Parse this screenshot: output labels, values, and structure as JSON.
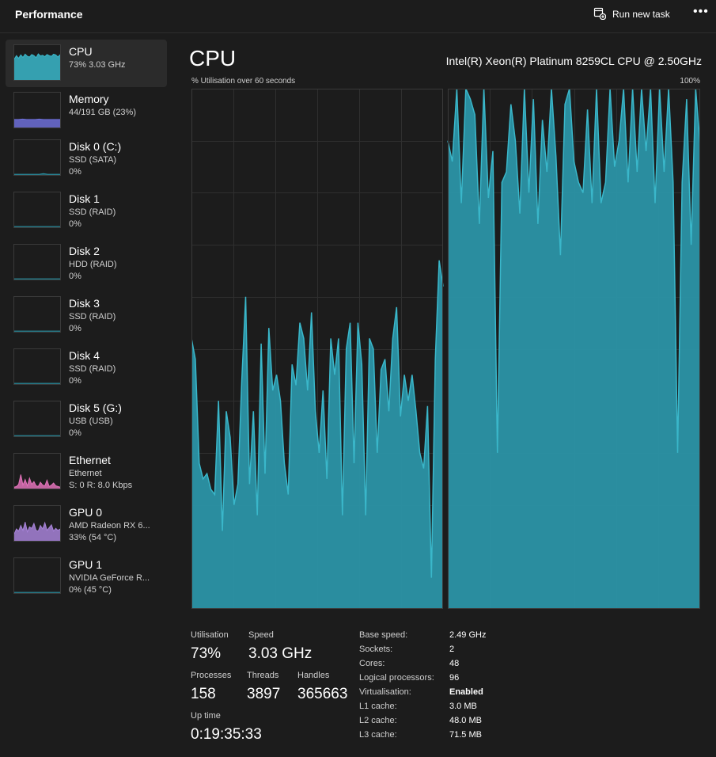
{
  "window": {
    "title": "Performance"
  },
  "toolbar": {
    "run_new_task_label": "Run new task",
    "more_label": "•••"
  },
  "colors": {
    "cpu": "#3ab7ca",
    "cpu_fill": "#2b94a6",
    "memory": "#6d6fd8",
    "ethernet": "#e072b8",
    "gpu": "#a783d8",
    "disk": "#2b94a6"
  },
  "sidebar": {
    "items": [
      {
        "name": "CPU",
        "line1": "73% 3.03 GHz",
        "line2": ""
      },
      {
        "name": "Memory",
        "line1": "44/191 GB (23%)",
        "line2": ""
      },
      {
        "name": "Disk 0 (C:)",
        "line1": "SSD (SATA)",
        "line2": "0%"
      },
      {
        "name": "Disk 1",
        "line1": "SSD (RAID)",
        "line2": "0%"
      },
      {
        "name": "Disk 2",
        "line1": "HDD (RAID)",
        "line2": "0%"
      },
      {
        "name": "Disk 3",
        "line1": "SSD (RAID)",
        "line2": "0%"
      },
      {
        "name": "Disk 4",
        "line1": "SSD (RAID)",
        "line2": "0%"
      },
      {
        "name": "Disk 5 (G:)",
        "line1": "USB (USB)",
        "line2": "0%"
      },
      {
        "name": "Ethernet",
        "line1": "Ethernet",
        "line2": "S: 0 R: 8.0 Kbps"
      },
      {
        "name": "GPU 0",
        "line1": "AMD Radeon RX 6...",
        "line2": "33% (54 °C)"
      },
      {
        "name": "GPU 1",
        "line1": "NVIDIA GeForce R...",
        "line2": "0% (45 °C)"
      }
    ]
  },
  "main": {
    "title": "CPU",
    "cpu_model": "Intel(R) Xeon(R) Platinum 8259CL CPU @ 2.50GHz",
    "graph_label": "% Utilisation over 60 seconds",
    "graph_max_label": "100%",
    "graph_panels": [
      {
        "values": [
          52,
          48,
          28,
          25,
          26,
          23,
          22,
          40,
          15,
          38,
          33,
          20,
          24,
          44,
          60,
          24,
          38,
          18,
          51,
          26,
          54,
          42,
          45,
          40,
          28,
          22,
          47,
          43,
          55,
          52,
          42,
          57,
          38,
          30,
          42,
          25,
          52,
          45,
          52,
          18,
          50,
          55,
          28,
          55,
          47,
          18,
          52,
          50,
          30,
          46,
          48,
          38,
          52,
          58,
          37,
          45,
          40,
          45,
          38,
          30,
          27,
          39,
          6,
          48,
          67,
          62
        ]
      },
      {
        "values": [
          90,
          86,
          100,
          78,
          100,
          98,
          95,
          74,
          100,
          79,
          88,
          30,
          82,
          84,
          97,
          90,
          76,
          100,
          80,
          98,
          74,
          94,
          84,
          100,
          87,
          68,
          97,
          100,
          86,
          82,
          80,
          96,
          78,
          100,
          78,
          82,
          100,
          85,
          90,
          100,
          82,
          100,
          84,
          100,
          88,
          100,
          78,
          100,
          84,
          100,
          82,
          30,
          82,
          98,
          70,
          100,
          89
        ]
      }
    ]
  },
  "stats": {
    "utilisation": {
      "label": "Utilisation",
      "value": "73%"
    },
    "speed": {
      "label": "Speed",
      "value": "3.03 GHz"
    },
    "processes": {
      "label": "Processes",
      "value": "158"
    },
    "threads": {
      "label": "Threads",
      "value": "3897"
    },
    "handles": {
      "label": "Handles",
      "value": "365663"
    },
    "uptime": {
      "label": "Up time",
      "value": "0:19:35:33"
    }
  },
  "specs": [
    {
      "key": "Base speed:",
      "value": "2.49 GHz",
      "bold": false
    },
    {
      "key": "Sockets:",
      "value": "2",
      "bold": false
    },
    {
      "key": "Cores:",
      "value": "48",
      "bold": false
    },
    {
      "key": "Logical processors:",
      "value": "96",
      "bold": false
    },
    {
      "key": "Virtualisation:",
      "value": "Enabled",
      "bold": true
    },
    {
      "key": "L1 cache:",
      "value": "3.0 MB",
      "bold": false
    },
    {
      "key": "L2 cache:",
      "value": "48.0 MB",
      "bold": false
    },
    {
      "key": "L3 cache:",
      "value": "71.5 MB",
      "bold": false
    }
  ]
}
